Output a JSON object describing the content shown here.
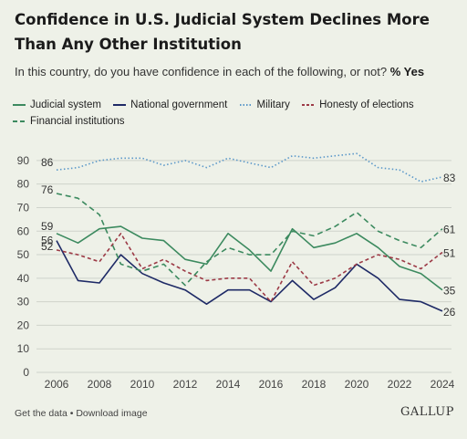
{
  "title": "Confidence in U.S. Judicial System Declines More Than Any Other Institution",
  "subtitle": "In this country, do you have confidence in each of the following, or not?",
  "subtitle_emphasis": "% Yes",
  "footer": {
    "get_data": "Get the data",
    "separator": "•",
    "download": "Download image",
    "brand": "GALLUP"
  },
  "colors": {
    "background": "#eef1e8",
    "grid": "#cfd3cb",
    "judicial": "#3c8a5f",
    "national": "#1e2a66",
    "military": "#5b98c9",
    "elections": "#9c3a46",
    "financial": "#3c8a5f"
  },
  "chart_data": {
    "type": "line",
    "x": [
      2006,
      2007,
      2008,
      2009,
      2010,
      2011,
      2012,
      2013,
      2014,
      2015,
      2016,
      2017,
      2018,
      2019,
      2020,
      2021,
      2022,
      2023,
      2024
    ],
    "xticks": [
      "2006",
      "2008",
      "2010",
      "2012",
      "2014",
      "2016",
      "2018",
      "2020",
      "2022",
      "2024"
    ],
    "yticks": [
      "0",
      "10",
      "20",
      "30",
      "40",
      "50",
      "60",
      "70",
      "80",
      "90"
    ],
    "ylim": [
      0,
      95
    ],
    "grid": true,
    "legend_position": "top",
    "series": [
      {
        "name": "Judicial system",
        "style": "solid",
        "color": "#3c8a5f",
        "values": [
          59,
          55,
          61,
          62,
          57,
          56,
          48,
          46,
          59,
          52,
          43,
          61,
          53,
          55,
          59,
          53,
          45,
          42,
          35
        ],
        "start_label": "59",
        "end_label": "35"
      },
      {
        "name": "National government",
        "style": "solid",
        "color": "#1e2a66",
        "values": [
          56,
          39,
          38,
          50,
          42,
          38,
          35,
          29,
          35,
          35,
          30,
          39,
          31,
          36,
          46,
          40,
          31,
          30,
          26
        ],
        "start_label": "56",
        "end_label": "26"
      },
      {
        "name": "Military",
        "style": "dotted",
        "color": "#5b98c9",
        "values": [
          86,
          87,
          90,
          91,
          91,
          88,
          90,
          87,
          91,
          89,
          87,
          92,
          91,
          92,
          93,
          87,
          86,
          81,
          83
        ],
        "start_label": "86",
        "end_label": "83"
      },
      {
        "name": "Honesty of elections",
        "style": "dashed",
        "color": "#9c3a46",
        "values": [
          52,
          50,
          47,
          59,
          44,
          48,
          43,
          39,
          40,
          40,
          30,
          47,
          37,
          40,
          46,
          50,
          48,
          44,
          51
        ],
        "start_label": "52",
        "end_label": "51"
      },
      {
        "name": "Financial institutions",
        "style": "longdash",
        "color": "#3c8a5f",
        "values": [
          76,
          74,
          67,
          46,
          43,
          46,
          37,
          47,
          53,
          50,
          50,
          60,
          58,
          62,
          68,
          60,
          56,
          53,
          61
        ],
        "start_label": "76",
        "end_label": "61"
      }
    ]
  }
}
